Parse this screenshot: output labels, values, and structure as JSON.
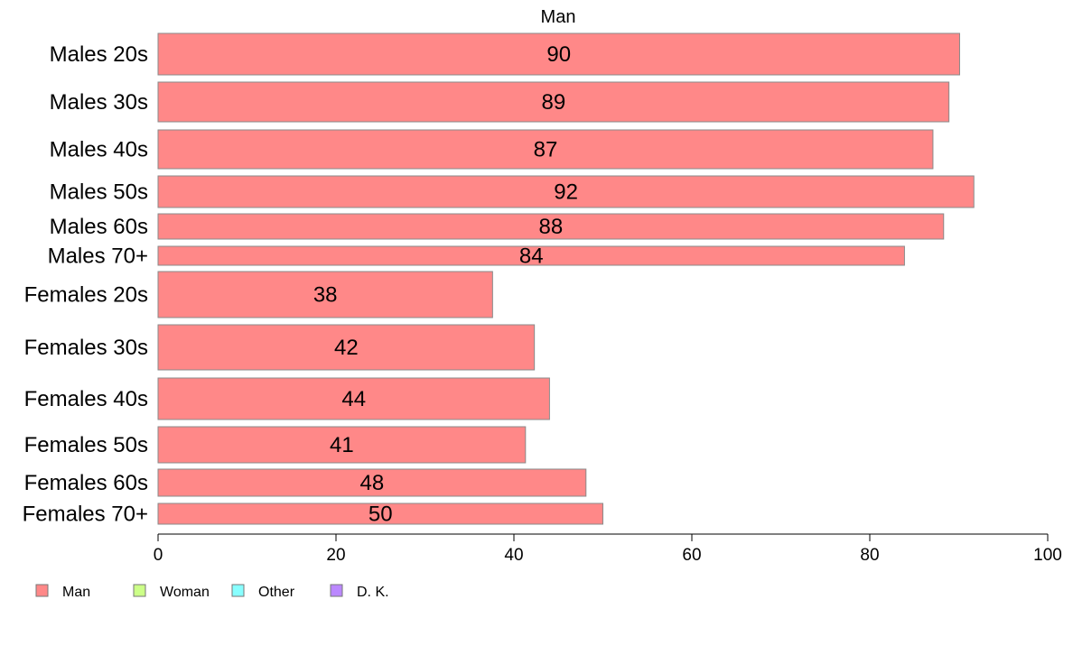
{
  "chart_data": {
    "type": "bar",
    "orientation": "horizontal",
    "title": "Man",
    "categories": [
      "Males 20s",
      "Males 30s",
      "Males 40s",
      "Males 50s",
      "Males 60s",
      "Males 70+",
      "Females 20s",
      "Females 30s",
      "Females 40s",
      "Females 50s",
      "Females 60s",
      "Females 70+"
    ],
    "values": [
      90,
      89,
      87,
      92,
      88,
      84,
      38,
      42,
      44,
      41,
      48,
      50
    ],
    "bar_values": [
      90.1,
      88.9,
      87.1,
      91.7,
      88.3,
      83.9,
      37.6,
      42.3,
      44.0,
      41.3,
      48.1,
      50.0
    ],
    "xlim": [
      0,
      100
    ],
    "xticks": [
      0,
      20,
      40,
      60,
      80,
      100
    ],
    "xlabel": "",
    "ylabel": "",
    "bar_color": "#ff8888",
    "grid": false,
    "legend_position": "bottom-left",
    "legend": [
      {
        "label": "Man",
        "color": "#ff8888"
      },
      {
        "label": "Woman",
        "color": "#ccff88"
      },
      {
        "label": "Other",
        "color": "#88ffff"
      },
      {
        "label": "D. K.",
        "color": "#bb88ff"
      }
    ]
  }
}
